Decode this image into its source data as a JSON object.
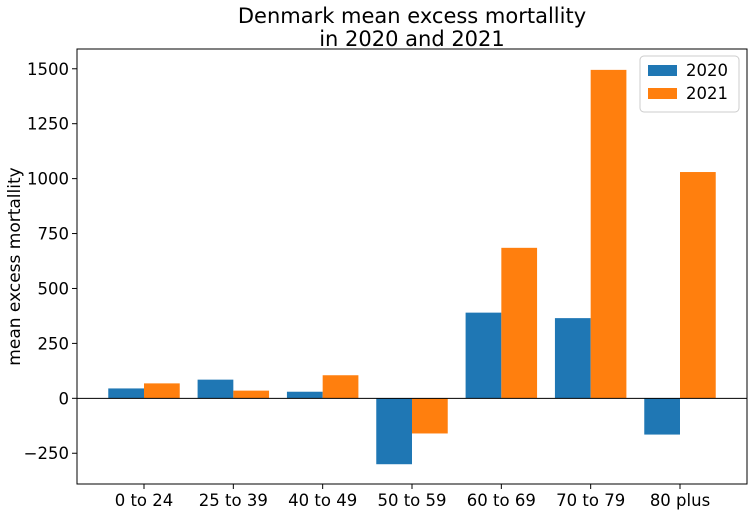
{
  "chart_data": {
    "type": "bar",
    "title": "Denmark mean excess mortallity\nin 2020 and 2021",
    "title_lines": [
      "Denmark mean excess mortallity",
      "in 2020 and 2021"
    ],
    "xlabel": "",
    "ylabel": "mean excess mortallity",
    "categories": [
      "0 to 24",
      "25 to 39",
      "40 to 49",
      "50 to 59",
      "60 to 69",
      "70 to 79",
      "80 plus"
    ],
    "series": [
      {
        "name": "2020",
        "color": "#1f77b4",
        "values": [
          45,
          85,
          30,
          -300,
          390,
          365,
          -165
        ]
      },
      {
        "name": "2021",
        "color": "#ff7f0e",
        "values": [
          68,
          35,
          105,
          -160,
          685,
          1495,
          1030
        ]
      }
    ],
    "ylim": [
      -390,
      1590
    ],
    "yticks": [
      -250,
      0,
      250,
      500,
      750,
      1000,
      1250,
      1500
    ],
    "ytick_labels": [
      "−250",
      "0",
      "250",
      "500",
      "750",
      "1000",
      "1250",
      "1500"
    ],
    "zero_line": true,
    "grid": false,
    "legend_position": "top-right"
  }
}
